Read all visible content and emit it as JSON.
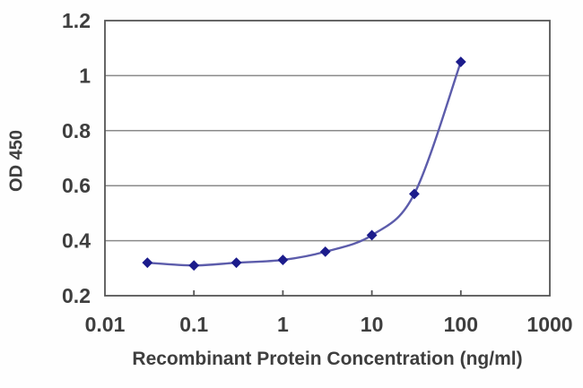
{
  "chart_data": {
    "type": "line",
    "title": "",
    "xlabel": "Recombinant Protein Concentration (ng/ml)",
    "ylabel": "OD 450",
    "x_scale": "log",
    "x": [
      0.03,
      0.1,
      0.3,
      1,
      3,
      10,
      30,
      100
    ],
    "y": [
      0.32,
      0.31,
      0.32,
      0.33,
      0.36,
      0.42,
      0.57,
      1.05
    ],
    "xlim": [
      0.01,
      1000
    ],
    "ylim": [
      0.2,
      1.2
    ],
    "x_ticks": [
      "0.01",
      "0.1",
      "1",
      "10",
      "100",
      "1000"
    ],
    "x_tick_values": [
      0.01,
      0.1,
      1,
      10,
      100,
      1000
    ],
    "y_ticks": [
      "0.2",
      "0.4",
      "0.6",
      "0.8",
      "1",
      "1.2"
    ],
    "y_tick_values": [
      0.2,
      0.4,
      0.6,
      0.8,
      1.0,
      1.2
    ],
    "grid": "horizontal",
    "legend": "none",
    "marker": "diamond",
    "smooth": true,
    "colors": {
      "line": "#5c5cab",
      "marker": "#1c1c8c",
      "grid": "#8a8a8a",
      "border": "#555555",
      "text": "#3e3e3e",
      "plot_bg": "#ffffff",
      "background": "#fefefe"
    }
  }
}
